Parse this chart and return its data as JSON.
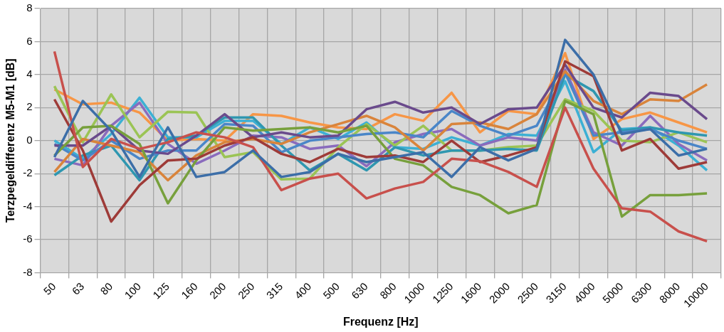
{
  "chart_data": {
    "type": "line",
    "xlabel": "Frequenz [Hz]",
    "ylabel": "Terzpegeldifferenz M5-M1 [dB]",
    "categories": [
      "50",
      "63",
      "80",
      "100",
      "125",
      "160",
      "200",
      "250",
      "315",
      "400",
      "500",
      "630",
      "800",
      "1000",
      "1250",
      "1600",
      "2000",
      "2500",
      "3150",
      "4000",
      "5000",
      "6300",
      "8000",
      "10000"
    ],
    "ylim": [
      -8,
      8
    ],
    "yticks": [
      -8,
      -6,
      -4,
      -2,
      0,
      2,
      4,
      6,
      8
    ],
    "grid": true,
    "legend": false,
    "marker": "none",
    "line_style": "solid",
    "series": [
      {
        "color": "#3c6ea8",
        "values": [
          -1.0,
          2.4,
          0.6,
          -2.2,
          0.8,
          -2.2,
          -1.9,
          -0.6,
          -2.2,
          -1.9,
          -0.8,
          -1.3,
          -1.0,
          -0.7,
          -2.2,
          -0.4,
          -1.2,
          -0.5,
          6.1,
          4.0,
          0.4,
          0.7,
          -0.9,
          -0.5
        ]
      },
      {
        "color": "#c8504c",
        "values": [
          5.4,
          -1.6,
          0.1,
          -0.5,
          -0.1,
          0.5,
          0.2,
          -0.4,
          -3.0,
          -2.3,
          -2.0,
          -3.5,
          -2.9,
          -2.5,
          -1.1,
          -1.25,
          -1.9,
          -2.8,
          2.0,
          -1.7,
          -4.1,
          -4.3,
          -5.5,
          -6.1
        ]
      },
      {
        "color": "#9e3b38",
        "values": [
          2.5,
          -0.6,
          -4.9,
          -2.7,
          -1.2,
          -1.1,
          -0.3,
          0.2,
          -0.8,
          -1.3,
          -0.5,
          -1.0,
          -0.9,
          -1.3,
          0.0,
          -1.3,
          -0.9,
          -0.4,
          4.8,
          3.9,
          -0.6,
          0.1,
          -1.7,
          -1.3
        ]
      },
      {
        "color": "#77a03c",
        "values": [
          -0.9,
          0.8,
          0.9,
          -0.2,
          -3.8,
          -1.2,
          0.8,
          0.6,
          0.7,
          0.8,
          0.5,
          0.9,
          -1.1,
          -1.5,
          -2.8,
          -3.3,
          -4.4,
          -3.9,
          2.4,
          1.6,
          -4.6,
          -3.3,
          -3.3,
          -3.2
        ]
      },
      {
        "color": "#6a4a8c",
        "values": [
          -0.3,
          -0.3,
          0.9,
          -0.6,
          -0.8,
          0.3,
          1.6,
          0.2,
          0.5,
          0.2,
          0.3,
          1.9,
          2.35,
          1.7,
          2.0,
          1.0,
          1.9,
          2.0,
          4.6,
          2.0,
          1.4,
          2.9,
          2.7,
          1.3
        ]
      },
      {
        "color": "#d9843b",
        "values": [
          -1.9,
          0.1,
          -0.3,
          -0.7,
          -2.4,
          -0.9,
          -0.1,
          0.1,
          -0.2,
          0.5,
          1.0,
          1.5,
          0.8,
          -0.6,
          1.0,
          1.1,
          0.7,
          1.6,
          4.2,
          2.4,
          1.6,
          2.5,
          2.4,
          3.4
        ]
      },
      {
        "color": "#4a86c8",
        "values": [
          -0.2,
          -1.2,
          0.0,
          -1.1,
          -0.6,
          -0.6,
          1.0,
          0.9,
          -0.7,
          0.0,
          0.2,
          0.4,
          0.5,
          0.2,
          1.8,
          0.9,
          0.3,
          0.9,
          4.1,
          0.3,
          0.5,
          0.7,
          0.0,
          -0.5
        ]
      },
      {
        "color": "#2f97b0",
        "values": [
          -2.1,
          -0.9,
          -0.3,
          -2.4,
          0.1,
          0.3,
          1.4,
          1.4,
          -0.3,
          -1.8,
          -0.8,
          -1.8,
          -0.4,
          -0.9,
          -0.6,
          -0.6,
          -0.5,
          -0.6,
          4.0,
          3.0,
          0.6,
          0.8,
          0.5,
          0.3
        ]
      },
      {
        "color": "#9bc455",
        "values": [
          3.3,
          -0.1,
          2.8,
          0.2,
          1.75,
          1.7,
          -1.0,
          -0.7,
          -2.35,
          -2.3,
          -0.4,
          1.0,
          -0.3,
          0.9,
          -0.6,
          -0.6,
          -0.4,
          -0.3,
          2.5,
          1.8,
          0.0,
          -0.1,
          0.5,
          -0.1
        ]
      },
      {
        "color": "#8a6bbd",
        "values": [
          -1.1,
          -1.5,
          0.9,
          2.3,
          -0.2,
          -1.4,
          -0.6,
          0.3,
          0.2,
          -0.5,
          -0.3,
          -1.55,
          -0.1,
          0.4,
          0.7,
          -0.3,
          0.2,
          0.0,
          4.3,
          0.5,
          -0.3,
          1.5,
          -0.2,
          -1.2
        ]
      },
      {
        "color": "#3cb0d4",
        "values": [
          0.0,
          -1.1,
          0.4,
          2.6,
          0.2,
          0.2,
          1.2,
          1.2,
          -0.2,
          0.8,
          0.1,
          1.1,
          -0.4,
          -0.5,
          0.2,
          -0.3,
          0.4,
          0.3,
          3.6,
          -0.7,
          0.7,
          0.8,
          -0.3,
          -1.8
        ]
      },
      {
        "color": "#f79646",
        "values": [
          3.1,
          2.2,
          2.3,
          1.7,
          0.0,
          0.1,
          0.0,
          1.6,
          1.5,
          1.1,
          0.8,
          0.7,
          1.6,
          1.2,
          2.9,
          0.5,
          1.8,
          1.6,
          5.3,
          0.1,
          1.3,
          1.7,
          1.1,
          0.5
        ]
      }
    ]
  }
}
